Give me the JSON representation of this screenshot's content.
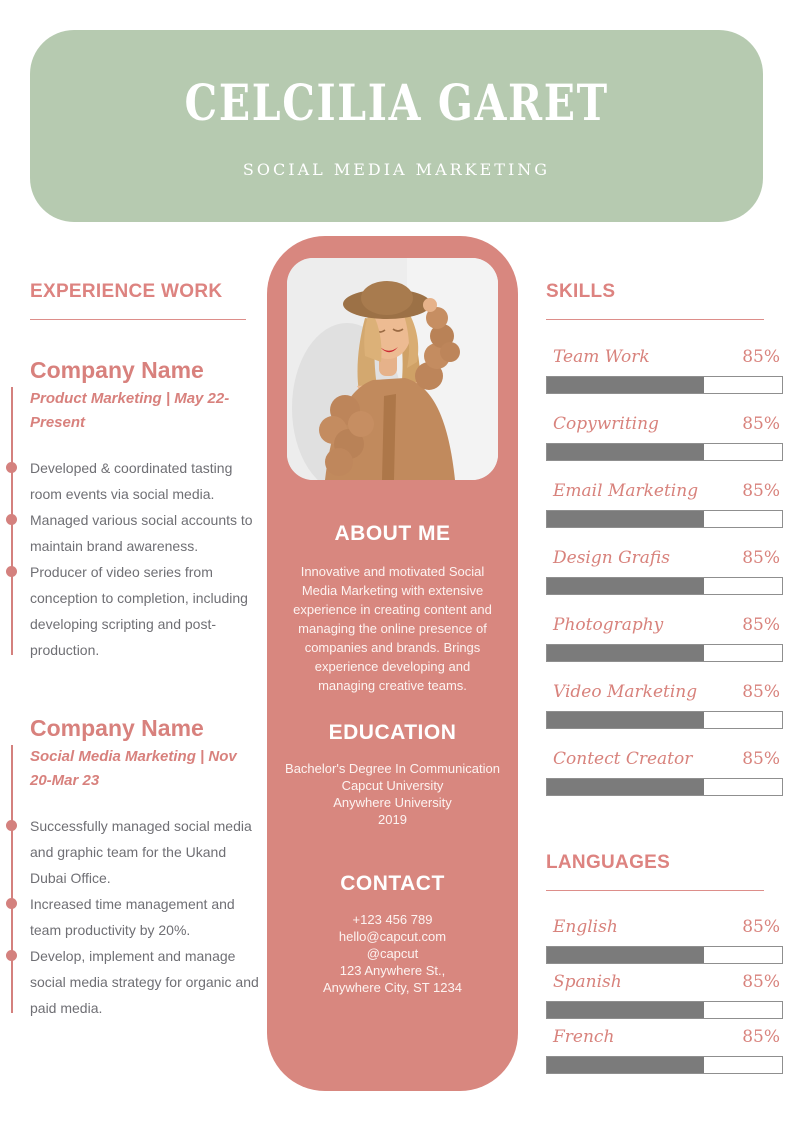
{
  "colors": {
    "header_green": "#b6cab0",
    "panel_rose": "#d8877f",
    "accent_rose": "#dd8380",
    "timeline_rose": "#d4817e",
    "bar_fill_gray": "#7b7b7b",
    "body_text_gray": "#6f6f74",
    "text_white": "#ffffff"
  },
  "header": {
    "name": "CELCILIA GARET",
    "subtitle": "SOCIAL MEDIA MARKETING"
  },
  "experience": {
    "heading": "EXPERIENCE WORK",
    "jobs": [
      {
        "company": "Company Name",
        "meta": "Product Marketing | May 22-Present",
        "bullets": [
          "Developed & coordinated tasting room events via social media.",
          "Managed various social accounts to maintain brand awareness.",
          "Producer of video series from conception to completion, including developing scripting and post-production."
        ]
      },
      {
        "company": "Company Name",
        "meta": "Social Media Marketing | Nov 20-Mar 23",
        "bullets": [
          "Successfully managed social media and graphic team for the Ukand Dubai Office.",
          "Increased time management and team productivity by 20%.",
          "Develop, implement and manage social media strategy for organic and paid media."
        ]
      }
    ]
  },
  "about": {
    "heading": "ABOUT ME",
    "text": "Innovative and motivated Social Media Marketing with extensive experience in creating content and managing the online presence of companies and brands. Brings experience developing and managing creative teams."
  },
  "education": {
    "heading": "EDUCATION",
    "lines": [
      "Bachelor's Degree In Communication",
      "Capcut University",
      "Anywhere University",
      "2019"
    ]
  },
  "contact": {
    "heading": "CONTACT",
    "lines": [
      "+123  456 789",
      "hello@capcut.com",
      "@capcut",
      "123 Anywhere St.,",
      "Anywhere City, ST 1234"
    ]
  },
  "skills": {
    "heading": "SKILLS",
    "items": [
      {
        "label": "Team Work",
        "percent": "85%",
        "fill": 67
      },
      {
        "label": "Copywriting",
        "percent": "85%",
        "fill": 67
      },
      {
        "label": "Email Marketing",
        "percent": "85%",
        "fill": 67
      },
      {
        "label": "Design Grafis",
        "percent": "85%",
        "fill": 67
      },
      {
        "label": "Photography",
        "percent": "85%",
        "fill": 67
      },
      {
        "label": "Video Marketing",
        "percent": "85%",
        "fill": 67
      },
      {
        "label": "Contect Creator",
        "percent": "85%",
        "fill": 67
      }
    ]
  },
  "languages": {
    "heading": "LANGUAGES",
    "items": [
      {
        "label": "English",
        "percent": "85%",
        "fill": 67
      },
      {
        "label": "Spanish",
        "percent": "85%",
        "fill": 67
      },
      {
        "label": "French",
        "percent": "85%",
        "fill": 67
      }
    ]
  },
  "photo": {
    "alt": "Portrait of smiling woman in brown wide-brim hat and chunky knit cardigan"
  }
}
